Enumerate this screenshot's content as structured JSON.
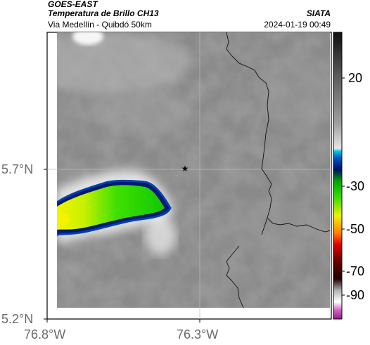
{
  "header": {
    "satellite": "GOES-EAST",
    "product": "Temperatura de Brillo CH13",
    "region": "Via Medellín - Quibdó 50km",
    "agency": "SIATA",
    "datetime": "2024-01-19 00:49"
  },
  "axes": {
    "lat_ticks": [
      "5.7°N",
      "5.2°N"
    ],
    "lon_ticks": [
      "76.8°W",
      "76.3°W"
    ]
  },
  "colorbar": {
    "labels": [
      "20",
      "-30",
      "-50",
      "-70",
      "-90"
    ]
  },
  "marker": {
    "symbol": "★"
  }
}
